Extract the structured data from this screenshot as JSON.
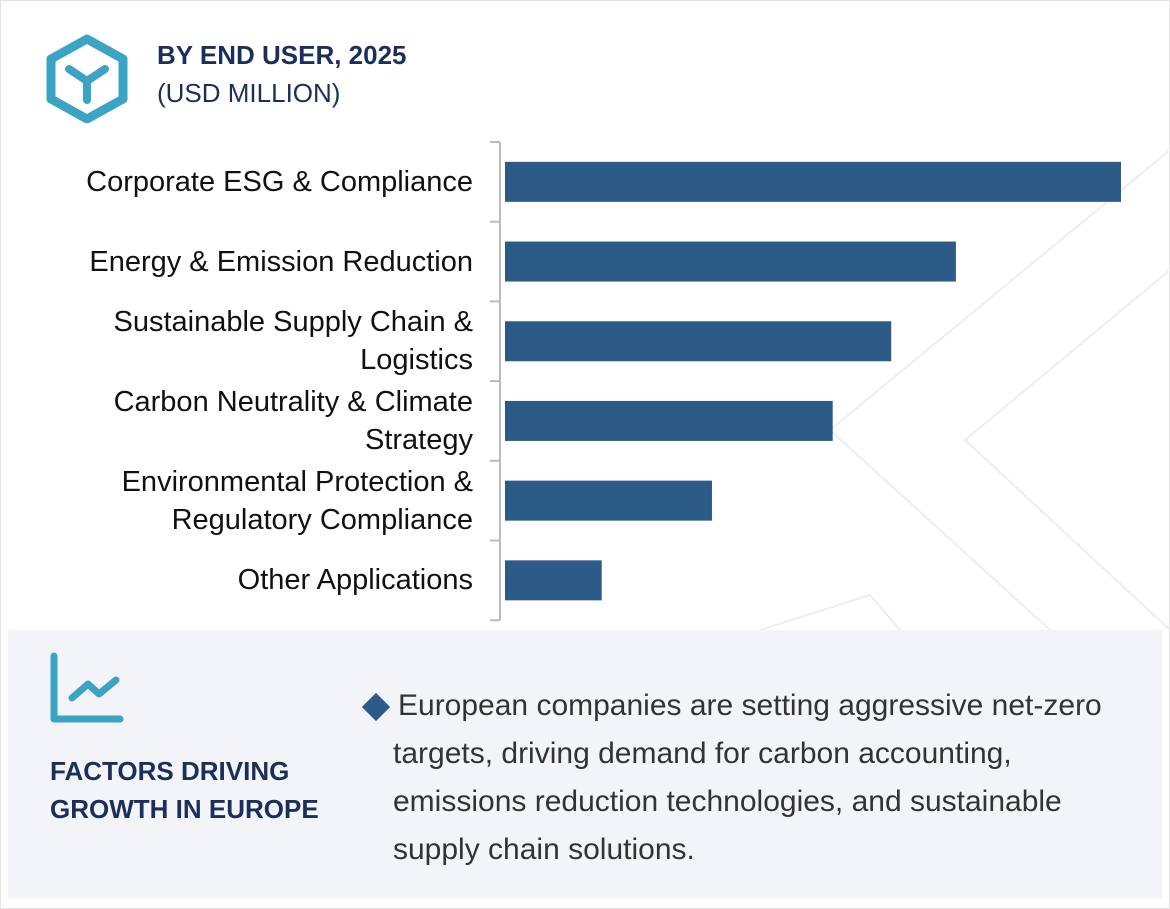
{
  "header": {
    "title": "BY END USER, 2025",
    "subtitle": "(USD MILLION)",
    "logo_icon": "hexagon-y-logo"
  },
  "colors": {
    "bar": "#2d5b88",
    "accent": "#3ba3c4",
    "navy": "#1b2f5b",
    "panel": "#f3f4f8"
  },
  "chart_data": {
    "type": "bar",
    "orientation": "horizontal",
    "title": "BY END USER, 2025",
    "ylabel": "(USD MILLION)",
    "categories": [
      "Corporate ESG & Compliance",
      "Energy & Emission Reduction",
      "Sustainable Supply Chain & Logistics",
      "Carbon Neutrality & Climate Strategy",
      "Environmental Protection & Regulatory Compliance",
      "Other Applications"
    ],
    "values": [
      100,
      73.2,
      62.7,
      53.2,
      33.6,
      15.7
    ],
    "value_note": "relative index (no axis values shown)",
    "xlim": [
      0,
      100
    ],
    "grid": false
  },
  "footer": {
    "icon": "trend-chart-icon",
    "heading": "FACTORS DRIVING GROWTH IN EUROPE",
    "bullet_text": "European companies are setting aggressive net-zero targets, driving demand for carbon accounting, emissions reduction technologies, and sustainable supply chain solutions."
  }
}
